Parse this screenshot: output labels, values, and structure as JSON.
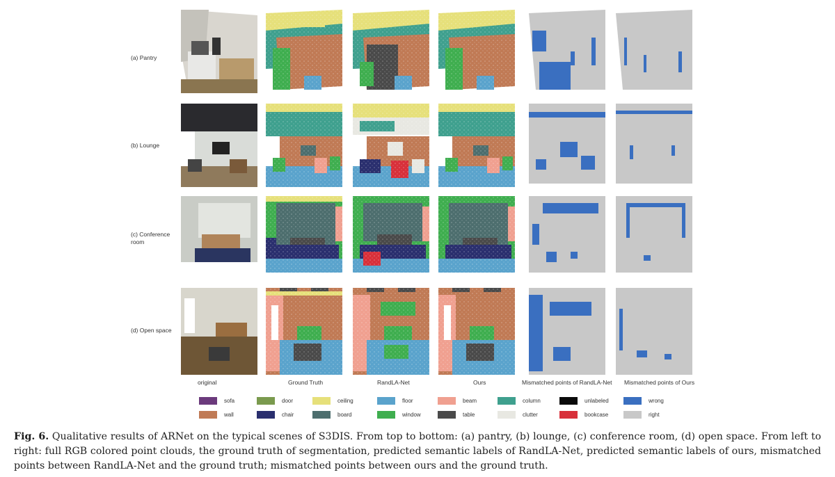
{
  "figure": {
    "rows": [
      {
        "key": "a",
        "label": "(a) Pantry"
      },
      {
        "key": "b",
        "label": "(b) Lounge"
      },
      {
        "key": "c",
        "label": "(c) Conference room"
      },
      {
        "key": "d",
        "label": "(d) Open space"
      }
    ],
    "columns": [
      {
        "key": "original",
        "label": "original"
      },
      {
        "key": "gt",
        "label": "Ground  Truth"
      },
      {
        "key": "randla",
        "label": "RandLA-Net"
      },
      {
        "key": "ours",
        "label": "Ours"
      },
      {
        "key": "mis_randla",
        "label": "Mismatched points of  RandLA-Net"
      },
      {
        "key": "mis_ours",
        "label": "Mismatched points of  Ours"
      }
    ],
    "legend": [
      {
        "label": "sofa",
        "color": "#6b3a7c"
      },
      {
        "label": "wall",
        "color": "#c07a55"
      },
      {
        "label": "door",
        "color": "#7a9a4e"
      },
      {
        "label": "chair",
        "color": "#2a2f6e"
      },
      {
        "label": "ceiling",
        "color": "#e6e07a"
      },
      {
        "label": "board",
        "color": "#4d6e6e"
      },
      {
        "label": "floor",
        "color": "#5aa3cc"
      },
      {
        "label": "window",
        "color": "#3fae4f"
      },
      {
        "label": "beam",
        "color": "#f0a090"
      },
      {
        "label": "table",
        "color": "#4a4a4a"
      },
      {
        "label": "column",
        "color": "#3fa08e"
      },
      {
        "label": "clutter",
        "color": "#e8e8e2"
      },
      {
        "label": "unlabeled",
        "color": "#0a0a0a"
      },
      {
        "label": "bookcase",
        "color": "#d8303a"
      },
      {
        "label": "wrong",
        "color": "#3a6fc0"
      },
      {
        "label": "right",
        "color": "#c8c8c8"
      }
    ]
  },
  "caption": {
    "fig_id": "Fig. 6.",
    "text": "Qualitative results of ARNet on the typical scenes of S3DIS. From top to bottom: (a) pantry, (b) lounge, (c) conference room, (d) open space. From left to right: full RGB colored point clouds, the ground truth of segmentation, predicted semantic labels of RandLA-Net, predicted semantic labels of ours, mismatched points between RandLA-Net and the ground truth; mismatched points between ours and the ground truth."
  }
}
